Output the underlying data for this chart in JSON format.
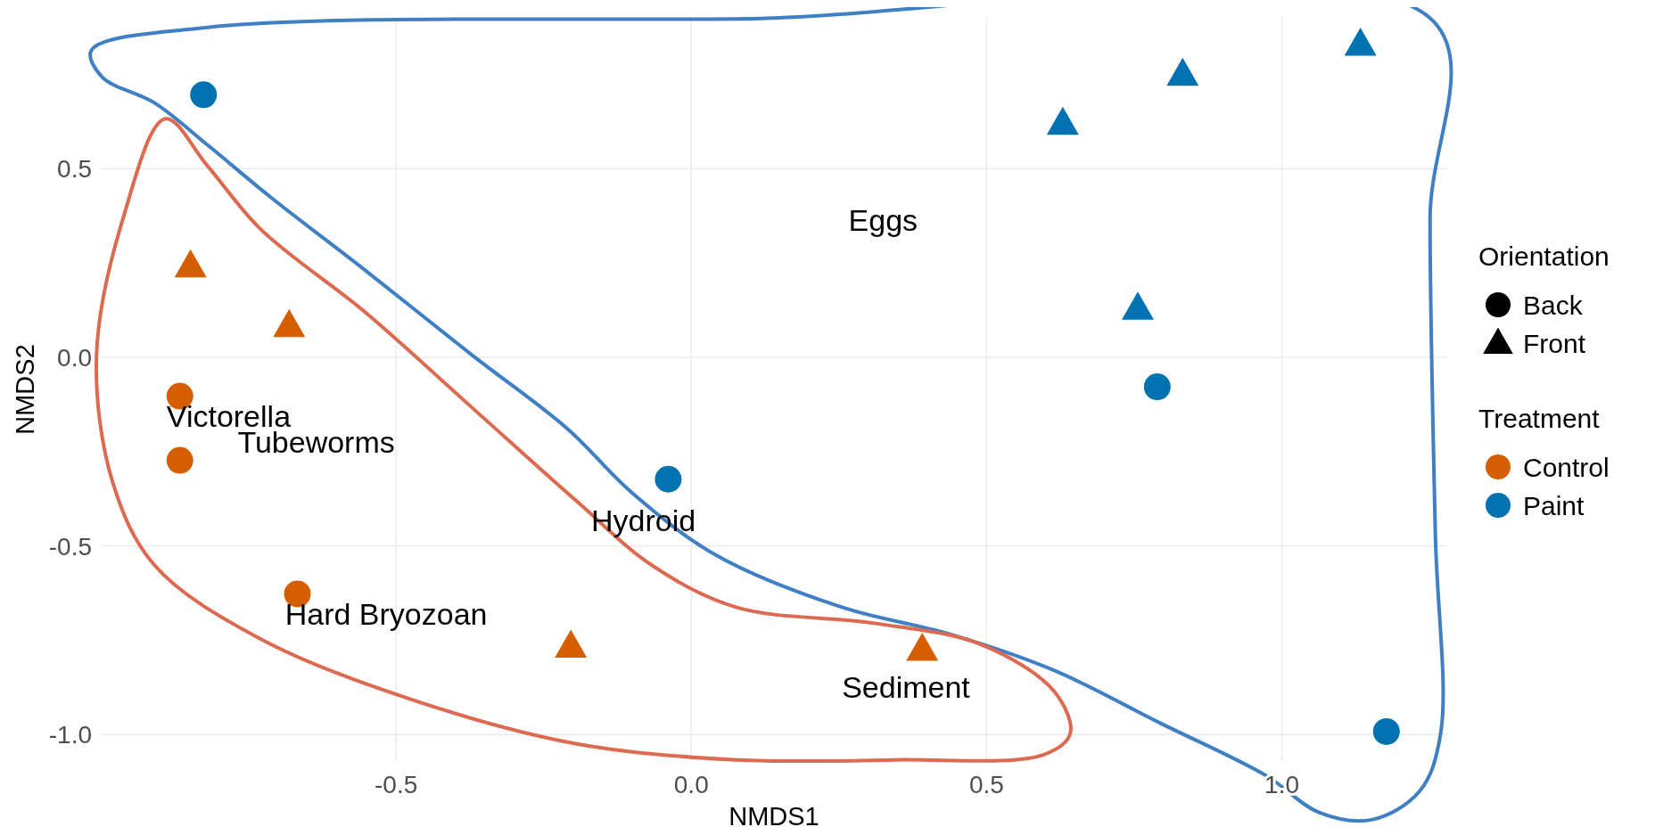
{
  "chart_data": {
    "type": "scatter",
    "xlabel": "NMDS1",
    "ylabel": "NMDS2",
    "xlim": [
      -1.0,
      1.28
    ],
    "ylim": [
      -1.07,
      0.9
    ],
    "xticks": [
      -0.5,
      {
        "value": 0.0,
        "label": "0.0"
      },
      0.5,
      {
        "value": 1.0,
        "label": "1.0"
      }
    ],
    "yticks": [
      {
        "value": 0.5,
        "label": "0.5"
      },
      {
        "value": 0.0,
        "label": "0.0"
      },
      {
        "value": -0.5,
        "label": "-0.5"
      },
      {
        "value": -1.0,
        "label": "-1.0"
      }
    ],
    "grid": true,
    "legend": "right",
    "legend_title": "Treatment",
    "series": [
      {
        "name": "Control",
        "color": "#d55e00",
        "marker": "circle",
        "x": [
          -0.866,
          -0.866,
          -0.667
        ],
        "values": [
          -0.103,
          -0.273,
          -0.627
        ]
      },
      {
        "color": "#d55e00",
        "marker": "triangle",
        "x": [
          -0.848,
          -0.681,
          -0.204,
          0.391
        ],
        "values": [
          0.242,
          0.084,
          -0.766,
          -0.774
        ]
      },
      {
        "name": "Paint",
        "color": "#0072b2",
        "marker": "circle",
        "x": [
          -0.826,
          0.789,
          -0.039,
          1.177
        ],
        "values": [
          0.696,
          -0.078,
          -0.323,
          -0.992
        ]
      },
      {
        "color": "#0072b2",
        "marker": "triangle",
        "x": [
          0.629,
          0.832,
          1.133,
          0.756
        ],
        "values": [
          0.62,
          0.75,
          0.83,
          0.13
        ]
      }
    ],
    "annotations": [
      "Orientation",
      "Back",
      "Front",
      "Eggs",
      "Victorella",
      "Tubeworms",
      "Hydroid",
      "Hard Bryozoan",
      "Sediment"
    ]
  }
}
